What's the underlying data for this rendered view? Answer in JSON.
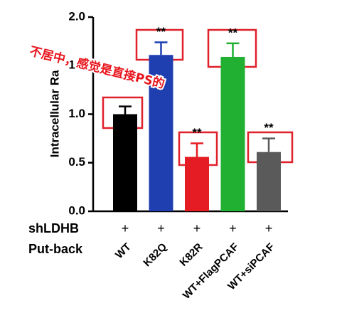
{
  "chart_data": {
    "type": "bar",
    "ylabel": "Intracellular Ra",
    "categories": [
      "WT",
      "K82Q",
      "K82R",
      "WT+FlagPCAF",
      "WT+siPCAF"
    ],
    "values": [
      1.0,
      1.61,
      0.56,
      1.59,
      0.61
    ],
    "errors": [
      0.08,
      0.13,
      0.14,
      0.14,
      0.14
    ],
    "colors": [
      "#000000",
      "#1f3fb0",
      "#e51c23",
      "#22b033",
      "#5a5a5a"
    ],
    "significance": [
      null,
      "**",
      "**",
      "**",
      "**"
    ],
    "ylim": [
      0,
      2
    ],
    "yticks": [
      {
        "value": 0,
        "label": "0.0"
      },
      {
        "value": 0.5,
        "label": "0.5"
      },
      {
        "value": 1,
        "label": "1.0"
      },
      {
        "value": 1.5,
        "label": "1.5"
      },
      {
        "value": 2,
        "label": "2.0"
      }
    ],
    "rows": [
      {
        "label": "shLDHB",
        "marks": [
          "+",
          "+",
          "+",
          "+",
          "+"
        ]
      },
      {
        "label": "Put-back"
      }
    ],
    "annotation": "不居中，感觉是直接PS的"
  }
}
